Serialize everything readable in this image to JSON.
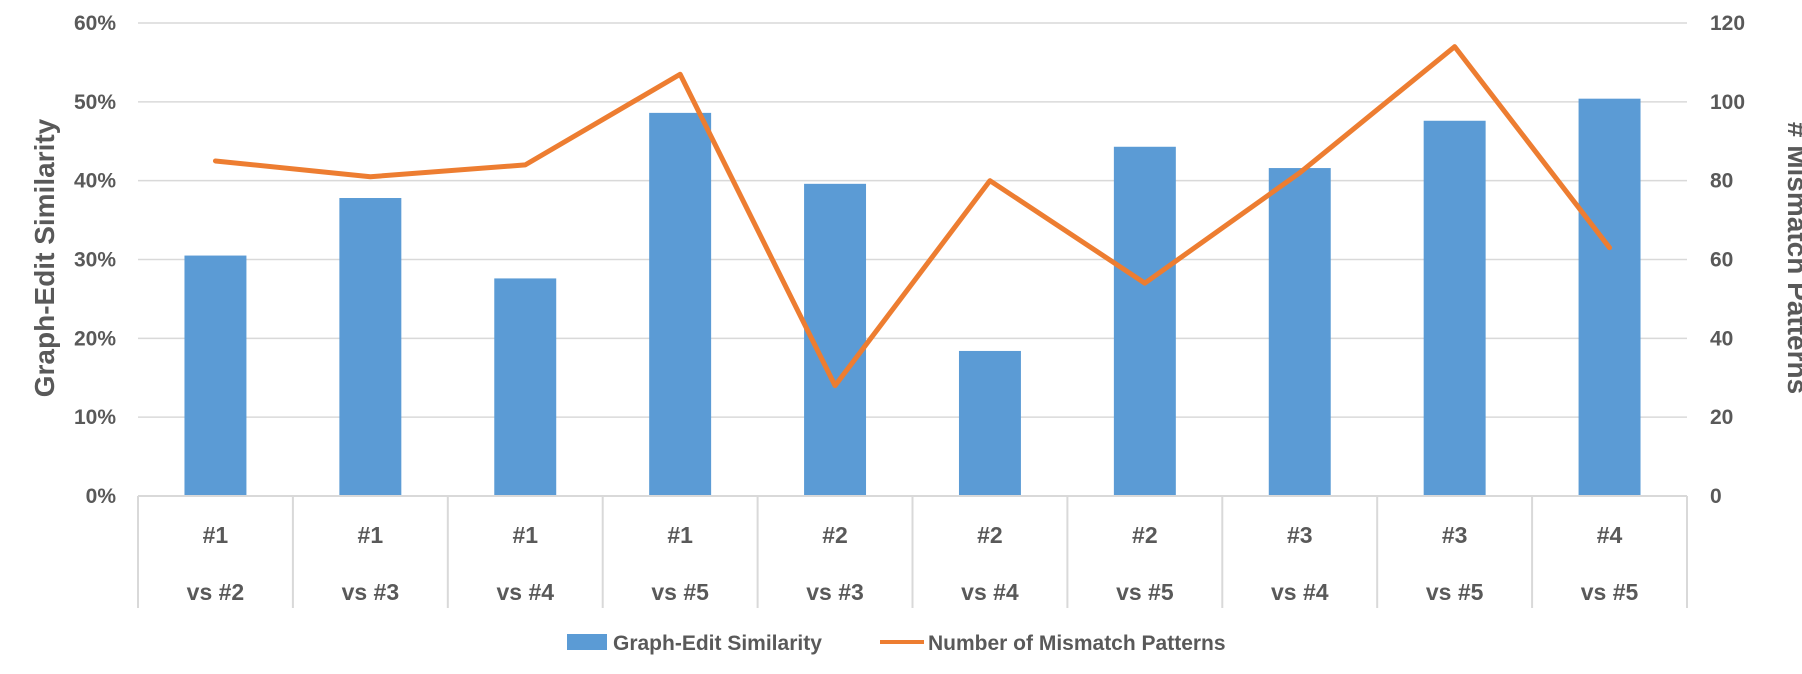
{
  "chart_data": {
    "type": "bar",
    "categories": [
      [
        "#1",
        "vs #2"
      ],
      [
        "#1",
        "vs #3"
      ],
      [
        "#1",
        "vs #4"
      ],
      [
        "#1",
        "vs #5"
      ],
      [
        "#2",
        "vs #3"
      ],
      [
        "#2",
        "vs #4"
      ],
      [
        "#2",
        "vs #5"
      ],
      [
        "#3",
        "vs #4"
      ],
      [
        "#3",
        "vs #5"
      ],
      [
        "#4",
        "vs #5"
      ]
    ],
    "series": [
      {
        "name": "Graph-Edit Similarity",
        "type": "bar",
        "axis": "left",
        "color": "#5B9BD5",
        "values": [
          30.5,
          37.8,
          27.6,
          48.6,
          39.6,
          18.4,
          44.3,
          41.6,
          47.6,
          50.4
        ]
      },
      {
        "name": "Number of Mismatch Patterns",
        "type": "line",
        "axis": "right",
        "color": "#ED7D31",
        "values": [
          85,
          81,
          84,
          107,
          28,
          80,
          54,
          82,
          114,
          63
        ]
      }
    ],
    "ylabel": "Graph-Edit Similarity",
    "y2label": "# Mismatch Patterns",
    "ylim": [
      0,
      60
    ],
    "y2lim": [
      0,
      120
    ],
    "yticks": [
      "0%",
      "10%",
      "20%",
      "30%",
      "40%",
      "50%",
      "60%"
    ],
    "y2ticks": [
      "0",
      "20",
      "40",
      "60",
      "80",
      "100",
      "120"
    ],
    "grid": true,
    "legend": "bottom"
  }
}
